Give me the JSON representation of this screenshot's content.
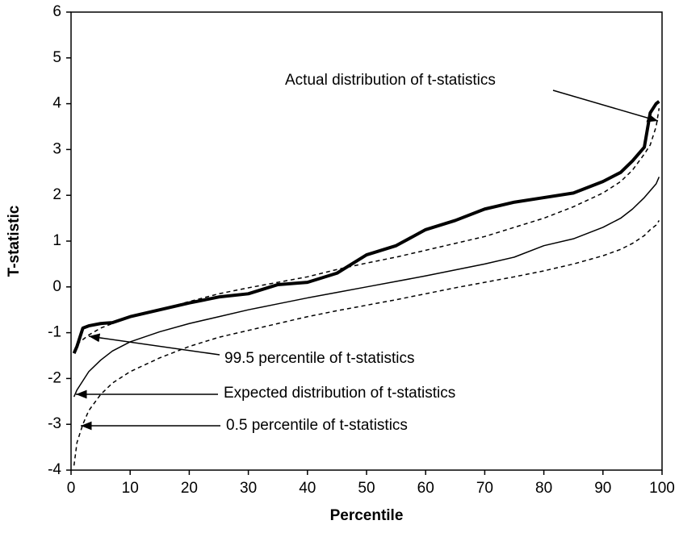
{
  "chart_data": {
    "type": "line",
    "x_label": "Percentile",
    "y_label": "T-statistic",
    "x": [
      0.5,
      1,
      2,
      3,
      5,
      7,
      10,
      15,
      20,
      25,
      30,
      35,
      40,
      45,
      50,
      55,
      60,
      65,
      70,
      75,
      80,
      85,
      90,
      93,
      95,
      97,
      98,
      99,
      99.5
    ],
    "series": [
      {
        "name": "Actual distribution of t-statistics",
        "color": "#000000",
        "width": 4,
        "dashed": false,
        "values": [
          -1.45,
          -1.3,
          -0.9,
          -0.85,
          -0.8,
          -0.78,
          -0.65,
          -0.5,
          -0.35,
          -0.22,
          -0.15,
          0.05,
          0.1,
          0.3,
          0.7,
          0.9,
          1.25,
          1.45,
          1.7,
          1.85,
          1.95,
          2.05,
          2.3,
          2.5,
          2.75,
          3.05,
          3.8,
          4.0,
          4.05
        ]
      },
      {
        "name": "99.5 percentile of t-statistics",
        "color": "#000000",
        "width": 1.5,
        "dashed": true,
        "values": [
          -1.4,
          -1.25,
          -1.15,
          -1.05,
          -0.9,
          -0.8,
          -0.65,
          -0.5,
          -0.32,
          -0.15,
          -0.02,
          0.1,
          0.22,
          0.38,
          0.52,
          0.65,
          0.8,
          0.95,
          1.1,
          1.3,
          1.5,
          1.75,
          2.05,
          2.3,
          2.55,
          2.9,
          3.1,
          3.5,
          3.9
        ]
      },
      {
        "name": "Expected distribution of t-statistics",
        "color": "#000000",
        "width": 1.5,
        "dashed": false,
        "values": [
          -2.4,
          -2.25,
          -2.05,
          -1.85,
          -1.6,
          -1.4,
          -1.2,
          -0.98,
          -0.8,
          -0.65,
          -0.5,
          -0.37,
          -0.24,
          -0.12,
          0,
          0.12,
          0.24,
          0.37,
          0.5,
          0.65,
          0.9,
          1.05,
          1.3,
          1.5,
          1.7,
          1.95,
          2.1,
          2.25,
          2.4
        ]
      },
      {
        "name": "0.5 percentile of t-statistics",
        "color": "#000000",
        "width": 1.5,
        "dashed": true,
        "values": [
          -3.9,
          -3.4,
          -3.0,
          -2.7,
          -2.35,
          -2.1,
          -1.85,
          -1.55,
          -1.3,
          -1.1,
          -0.95,
          -0.8,
          -0.65,
          -0.52,
          -0.4,
          -0.28,
          -0.15,
          -0.02,
          0.1,
          0.22,
          0.35,
          0.5,
          0.68,
          0.82,
          0.95,
          1.12,
          1.25,
          1.35,
          1.45
        ]
      }
    ],
    "xlim": [
      0,
      100
    ],
    "xticks": [
      0,
      10,
      20,
      30,
      40,
      50,
      60,
      70,
      80,
      90,
      100
    ],
    "ylim": [
      -4,
      6
    ],
    "yticks": [
      -4,
      -3,
      -2,
      -1,
      0,
      1,
      2,
      3,
      4,
      5,
      6
    ],
    "grid": false
  }
}
